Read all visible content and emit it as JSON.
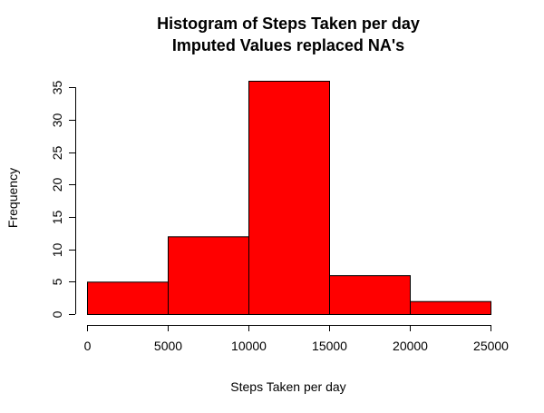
{
  "chart_data": {
    "type": "bar",
    "title": "Histogram of Steps Taken per day",
    "subtitle": "Imputed Values replaced NA's",
    "xlabel": "Steps Taken per day",
    "ylabel": "Frequency",
    "bins": [
      {
        "from": 0,
        "to": 5000,
        "count": 5
      },
      {
        "from": 5000,
        "to": 10000,
        "count": 12
      },
      {
        "from": 10000,
        "to": 15000,
        "count": 36
      },
      {
        "from": 15000,
        "to": 20000,
        "count": 6
      },
      {
        "from": 20000,
        "to": 25000,
        "count": 2
      }
    ],
    "xticks": [
      0,
      5000,
      10000,
      15000,
      20000,
      25000
    ],
    "yticks": [
      0,
      5,
      10,
      15,
      20,
      25,
      30,
      35
    ],
    "xlim": [
      0,
      25000
    ],
    "ylim": [
      0,
      36
    ],
    "bar_color": "#ff0000",
    "bar_border_color": "#000000",
    "grid": false
  }
}
